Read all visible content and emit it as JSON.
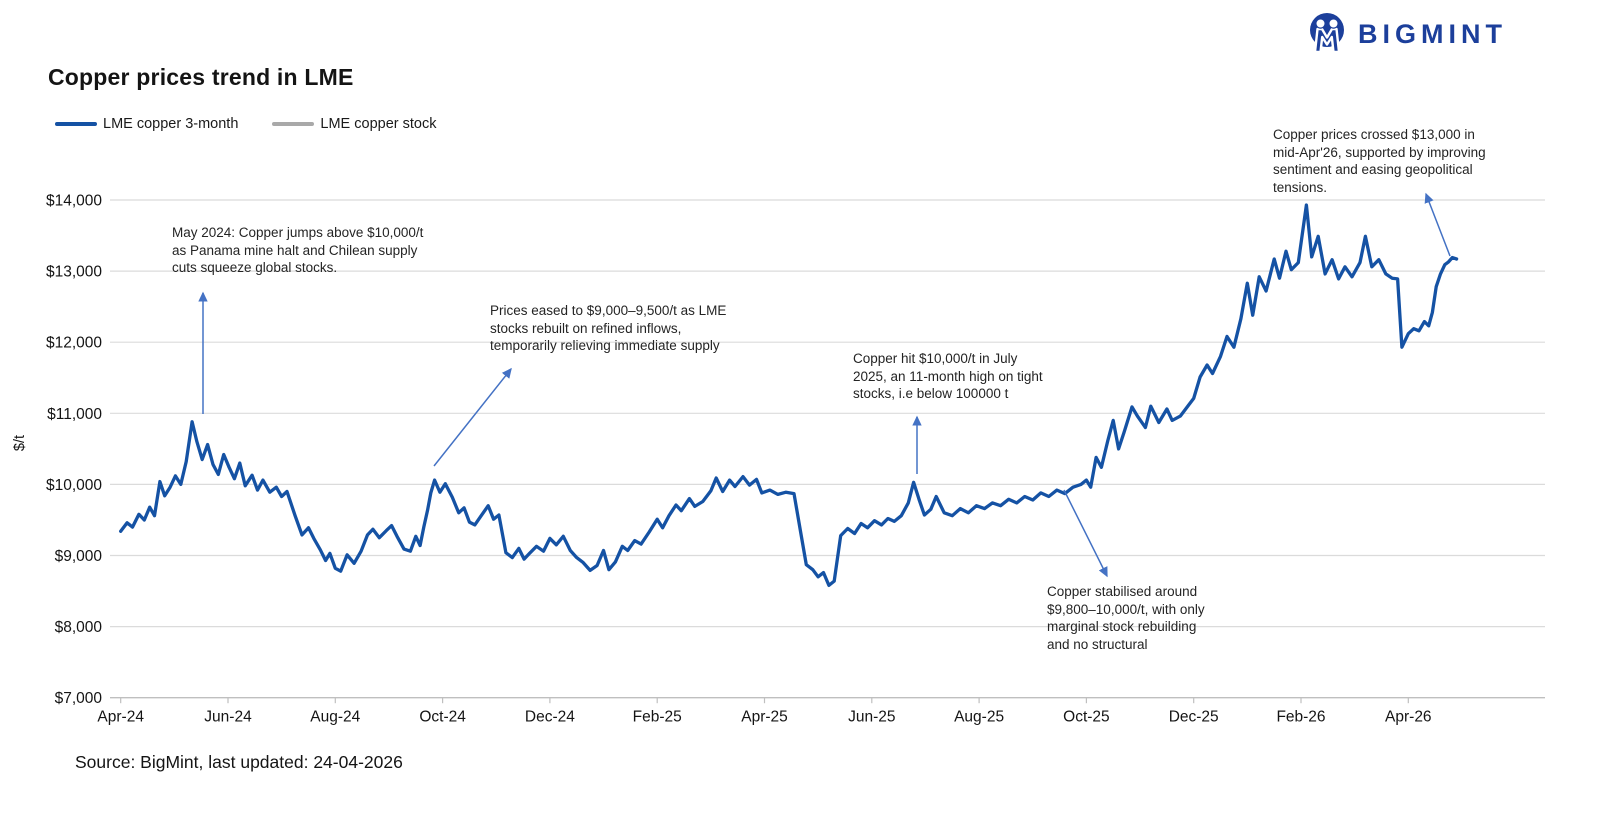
{
  "logo": {
    "text": "BIGMINT",
    "color": "#1C3F9B"
  },
  "title": "Copper prices trend in LME",
  "legend": [
    {
      "label": "LME copper 3-month",
      "color": "#1552A4"
    },
    {
      "label": "LME copper stock",
      "color": "#A9A9A9"
    }
  ],
  "source_note": "Source: BigMint, last updated: 24-04-2026",
  "chart_data": {
    "type": "line",
    "title": "Copper prices trend in LME",
    "xlabel": "",
    "ylabel": "$/t",
    "ylim": [
      7000,
      14000
    ],
    "grid": "horizontal",
    "legend_position": "top-left",
    "colors": {
      "line": "#1552A4",
      "grid": "#DBDBDB",
      "axis": "#BFBFBF",
      "arrow": "#4472C4"
    },
    "y_ticks": [
      {
        "value": 14000,
        "label": "$14,000"
      },
      {
        "value": 13000,
        "label": "$13,000"
      },
      {
        "value": 12000,
        "label": "$12,000"
      },
      {
        "value": 11000,
        "label": "$11,000"
      },
      {
        "value": 10000,
        "label": "$10,000"
      },
      {
        "value": 9000,
        "label": "$9,000"
      },
      {
        "value": 8000,
        "label": "$8,000"
      },
      {
        "value": 7000,
        "label": "$7,000"
      }
    ],
    "x_ticks": [
      {
        "m": 0,
        "label": "Apr-24"
      },
      {
        "m": 2,
        "label": "Jun-24"
      },
      {
        "m": 4,
        "label": "Aug-24"
      },
      {
        "m": 6,
        "label": "Oct-24"
      },
      {
        "m": 8,
        "label": "Dec-24"
      },
      {
        "m": 10,
        "label": "Feb-25"
      },
      {
        "m": 12,
        "label": "Apr-25"
      },
      {
        "m": 14,
        "label": "Jun-25"
      },
      {
        "m": 16,
        "label": "Aug-25"
      },
      {
        "m": 18,
        "label": "Oct-25"
      },
      {
        "m": 20,
        "label": "Dec-25"
      },
      {
        "m": 22,
        "label": "Feb-26"
      },
      {
        "m": 24,
        "label": "Apr-26"
      }
    ],
    "series": [
      {
        "name": "LME copper 3-month",
        "color": "#1552A4",
        "points": [
          [
            0,
            9340
          ],
          [
            0.12,
            9460
          ],
          [
            0.22,
            9400
          ],
          [
            0.34,
            9580
          ],
          [
            0.44,
            9500
          ],
          [
            0.54,
            9680
          ],
          [
            0.63,
            9560
          ],
          [
            0.73,
            10040
          ],
          [
            0.82,
            9840
          ],
          [
            0.92,
            9960
          ],
          [
            1.02,
            10120
          ],
          [
            1.12,
            10000
          ],
          [
            1.22,
            10320
          ],
          [
            1.33,
            10880
          ],
          [
            1.42,
            10600
          ],
          [
            1.52,
            10350
          ],
          [
            1.62,
            10560
          ],
          [
            1.72,
            10280
          ],
          [
            1.82,
            10140
          ],
          [
            1.92,
            10420
          ],
          [
            2.02,
            10240
          ],
          [
            2.12,
            10080
          ],
          [
            2.22,
            10300
          ],
          [
            2.32,
            9980
          ],
          [
            2.45,
            10130
          ],
          [
            2.55,
            9920
          ],
          [
            2.65,
            10060
          ],
          [
            2.78,
            9890
          ],
          [
            2.9,
            9960
          ],
          [
            3,
            9830
          ],
          [
            3.1,
            9900
          ],
          [
            3.25,
            9560
          ],
          [
            3.38,
            9290
          ],
          [
            3.5,
            9390
          ],
          [
            3.6,
            9240
          ],
          [
            3.72,
            9080
          ],
          [
            3.82,
            8930
          ],
          [
            3.9,
            9030
          ],
          [
            4,
            8820
          ],
          [
            4.1,
            8780
          ],
          [
            4.22,
            9010
          ],
          [
            4.35,
            8890
          ],
          [
            4.48,
            9060
          ],
          [
            4.6,
            9290
          ],
          [
            4.7,
            9370
          ],
          [
            4.82,
            9250
          ],
          [
            4.95,
            9350
          ],
          [
            5.05,
            9420
          ],
          [
            5.15,
            9270
          ],
          [
            5.28,
            9090
          ],
          [
            5.4,
            9060
          ],
          [
            5.5,
            9270
          ],
          [
            5.58,
            9140
          ],
          [
            5.65,
            9400
          ],
          [
            5.72,
            9640
          ],
          [
            5.78,
            9880
          ],
          [
            5.85,
            10060
          ],
          [
            5.95,
            9890
          ],
          [
            6.05,
            10010
          ],
          [
            6.18,
            9820
          ],
          [
            6.3,
            9600
          ],
          [
            6.4,
            9670
          ],
          [
            6.5,
            9470
          ],
          [
            6.6,
            9430
          ],
          [
            6.72,
            9560
          ],
          [
            6.85,
            9700
          ],
          [
            6.95,
            9510
          ],
          [
            7.05,
            9570
          ],
          [
            7.18,
            9040
          ],
          [
            7.3,
            8970
          ],
          [
            7.42,
            9100
          ],
          [
            7.52,
            8950
          ],
          [
            7.62,
            9030
          ],
          [
            7.75,
            9130
          ],
          [
            7.88,
            9060
          ],
          [
            8,
            9240
          ],
          [
            8.12,
            9150
          ],
          [
            8.25,
            9270
          ],
          [
            8.38,
            9070
          ],
          [
            8.5,
            8970
          ],
          [
            8.62,
            8900
          ],
          [
            8.75,
            8790
          ],
          [
            8.88,
            8860
          ],
          [
            9,
            9070
          ],
          [
            9.1,
            8800
          ],
          [
            9.22,
            8910
          ],
          [
            9.35,
            9130
          ],
          [
            9.45,
            9070
          ],
          [
            9.58,
            9210
          ],
          [
            9.7,
            9160
          ],
          [
            9.85,
            9330
          ],
          [
            10,
            9510
          ],
          [
            10.1,
            9390
          ],
          [
            10.22,
            9560
          ],
          [
            10.35,
            9710
          ],
          [
            10.45,
            9630
          ],
          [
            10.6,
            9800
          ],
          [
            10.7,
            9690
          ],
          [
            10.85,
            9760
          ],
          [
            11,
            9910
          ],
          [
            11.1,
            10090
          ],
          [
            11.22,
            9900
          ],
          [
            11.35,
            10060
          ],
          [
            11.45,
            9970
          ],
          [
            11.6,
            10110
          ],
          [
            11.72,
            9990
          ],
          [
            11.85,
            10070
          ],
          [
            11.95,
            9880
          ],
          [
            12.1,
            9920
          ],
          [
            12.25,
            9860
          ],
          [
            12.4,
            9890
          ],
          [
            12.55,
            9870
          ],
          [
            12.68,
            9300
          ],
          [
            12.78,
            8870
          ],
          [
            12.9,
            8800
          ],
          [
            13,
            8700
          ],
          [
            13.1,
            8760
          ],
          [
            13.2,
            8580
          ],
          [
            13.3,
            8640
          ],
          [
            13.42,
            9280
          ],
          [
            13.55,
            9380
          ],
          [
            13.68,
            9310
          ],
          [
            13.8,
            9450
          ],
          [
            13.92,
            9390
          ],
          [
            14.05,
            9490
          ],
          [
            14.18,
            9430
          ],
          [
            14.3,
            9520
          ],
          [
            14.42,
            9480
          ],
          [
            14.55,
            9560
          ],
          [
            14.68,
            9740
          ],
          [
            14.78,
            10030
          ],
          [
            14.88,
            9790
          ],
          [
            14.98,
            9570
          ],
          [
            15.1,
            9650
          ],
          [
            15.2,
            9830
          ],
          [
            15.35,
            9600
          ],
          [
            15.5,
            9560
          ],
          [
            15.65,
            9660
          ],
          [
            15.8,
            9600
          ],
          [
            15.95,
            9700
          ],
          [
            16.1,
            9660
          ],
          [
            16.25,
            9740
          ],
          [
            16.4,
            9700
          ],
          [
            16.55,
            9790
          ],
          [
            16.7,
            9740
          ],
          [
            16.85,
            9830
          ],
          [
            17,
            9780
          ],
          [
            17.15,
            9880
          ],
          [
            17.3,
            9830
          ],
          [
            17.45,
            9920
          ],
          [
            17.6,
            9870
          ],
          [
            17.75,
            9960
          ],
          [
            17.9,
            10000
          ],
          [
            18,
            10060
          ],
          [
            18.08,
            9960
          ],
          [
            18.18,
            10380
          ],
          [
            18.28,
            10240
          ],
          [
            18.4,
            10620
          ],
          [
            18.5,
            10900
          ],
          [
            18.6,
            10500
          ],
          [
            18.7,
            10730
          ],
          [
            18.85,
            11090
          ],
          [
            18.95,
            10960
          ],
          [
            19.1,
            10800
          ],
          [
            19.2,
            11100
          ],
          [
            19.35,
            10870
          ],
          [
            19.5,
            11060
          ],
          [
            19.6,
            10900
          ],
          [
            19.75,
            10960
          ],
          [
            19.9,
            11110
          ],
          [
            20,
            11210
          ],
          [
            20.12,
            11510
          ],
          [
            20.25,
            11680
          ],
          [
            20.35,
            11560
          ],
          [
            20.5,
            11800
          ],
          [
            20.62,
            12080
          ],
          [
            20.75,
            11930
          ],
          [
            20.88,
            12330
          ],
          [
            21,
            12830
          ],
          [
            21.1,
            12380
          ],
          [
            21.22,
            12920
          ],
          [
            21.35,
            12720
          ],
          [
            21.5,
            13170
          ],
          [
            21.6,
            12900
          ],
          [
            21.72,
            13280
          ],
          [
            21.82,
            13020
          ],
          [
            21.95,
            13120
          ],
          [
            22.1,
            13930
          ],
          [
            22.2,
            13200
          ],
          [
            22.32,
            13490
          ],
          [
            22.45,
            12960
          ],
          [
            22.58,
            13160
          ],
          [
            22.7,
            12890
          ],
          [
            22.82,
            13060
          ],
          [
            22.95,
            12920
          ],
          [
            23.1,
            13120
          ],
          [
            23.2,
            13490
          ],
          [
            23.32,
            13060
          ],
          [
            23.45,
            13160
          ],
          [
            23.58,
            12960
          ],
          [
            23.7,
            12900
          ],
          [
            23.8,
            12890
          ],
          [
            23.88,
            11930
          ],
          [
            24,
            12120
          ],
          [
            24.1,
            12190
          ],
          [
            24.2,
            12160
          ],
          [
            24.3,
            12290
          ],
          [
            24.38,
            12230
          ],
          [
            24.45,
            12420
          ],
          [
            24.52,
            12780
          ],
          [
            24.6,
            12960
          ],
          [
            24.68,
            13090
          ],
          [
            24.75,
            13130
          ],
          [
            24.82,
            13190
          ],
          [
            24.9,
            13170
          ]
        ]
      },
      {
        "name": "LME copper stock",
        "color": "#A9A9A9",
        "points": []
      }
    ],
    "annotations": [
      {
        "lines": [
          "May 2024: Copper jumps above $10,000/t",
          "as Panama mine halt and Chilean supply",
          "cuts squeeze global stocks."
        ],
        "arrow": {
          "from": [
            203,
            414
          ],
          "to": [
            203,
            293
          ]
        }
      },
      {
        "lines": [
          "Prices eased to $9,000–9,500/t as LME",
          "stocks rebuilt on refined inflows,",
          "temporarily relieving immediate supply"
        ],
        "arrow": {
          "from": [
            434,
            466
          ],
          "to": [
            511,
            369
          ]
        }
      },
      {
        "lines": [
          "Copper hit $10,000/t in July",
          "2025, an 11-month high on tight",
          "stocks, i.e below 100000 t"
        ],
        "arrow": {
          "from": [
            917,
            474
          ],
          "to": [
            917,
            417
          ]
        }
      },
      {
        "lines": [
          "Copper stabilised around",
          "$9,800–10,000/t, with only",
          "marginal stock rebuilding",
          "and no structural"
        ],
        "arrow": {
          "from": [
            1064,
            490
          ],
          "to": [
            1107,
            576
          ]
        }
      },
      {
        "lines": [
          "Copper prices crossed $13,000 in",
          "mid-Apr'26, supported by improving",
          "sentiment and easing geopolitical",
          "tensions."
        ],
        "arrow": {
          "from": [
            1450,
            256
          ],
          "to": [
            1426,
            194
          ]
        }
      }
    ]
  }
}
